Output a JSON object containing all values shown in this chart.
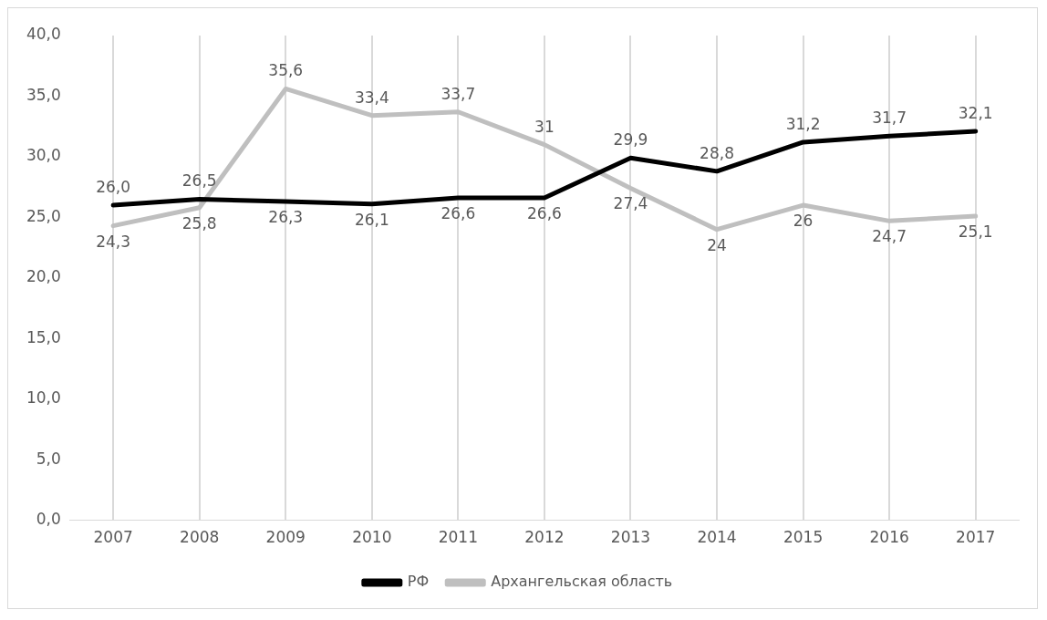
{
  "chart_data": {
    "type": "line",
    "categories": [
      "2007",
      "2008",
      "2009",
      "2010",
      "2011",
      "2012",
      "2013",
      "2014",
      "2015",
      "2016",
      "2017"
    ],
    "series": [
      {
        "name": "РФ",
        "color": "#000000",
        "values": [
          26.0,
          26.5,
          26.3,
          26.1,
          26.6,
          26.6,
          29.9,
          28.8,
          31.2,
          31.7,
          32.1
        ],
        "value_labels": [
          "26,0",
          "26,5",
          "26,3",
          "26,1",
          "26,6",
          "26,6",
          "29,9",
          "28,8",
          "31,2",
          "31,7",
          "32,1"
        ]
      },
      {
        "name": "Архангельская область",
        "color": "#bfbfbf",
        "values": [
          24.3,
          25.8,
          35.6,
          33.4,
          33.7,
          31,
          27.4,
          24,
          26,
          24.7,
          25.1
        ],
        "value_labels": [
          "24,3",
          "25,8",
          "35,6",
          "33,4",
          "33,7",
          "31",
          "27,4",
          "24",
          "26",
          "24,7",
          "25,1"
        ]
      }
    ],
    "ylim": [
      0,
      40
    ],
    "yticks": [
      {
        "value": 0,
        "label": "0,0"
      },
      {
        "value": 5,
        "label": "5,0"
      },
      {
        "value": 10,
        "label": "10,0"
      },
      {
        "value": 15,
        "label": "15,0"
      },
      {
        "value": 20,
        "label": "20,0"
      },
      {
        "value": 25,
        "label": "25,0"
      },
      {
        "value": 30,
        "label": "30,0"
      },
      {
        "value": 35,
        "label": "35,0"
      },
      {
        "value": 40,
        "label": "40,0"
      }
    ],
    "grid": "x",
    "legend": "bottom",
    "marker": "none",
    "line_style": "solid"
  }
}
